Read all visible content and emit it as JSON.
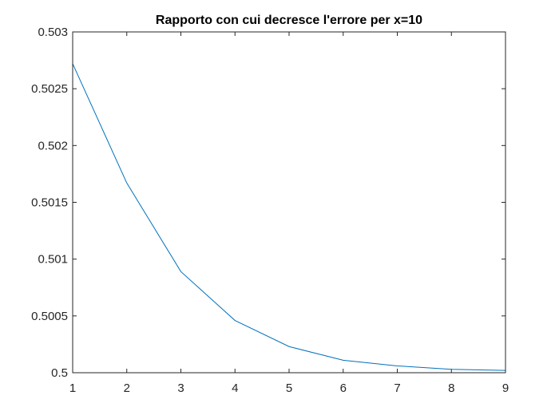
{
  "chart_data": {
    "type": "line",
    "title": "Rapporto con cui decresce l'errore per x=10",
    "xlabel": "",
    "ylabel": "",
    "x": [
      1,
      2,
      3,
      4,
      5,
      6,
      7,
      8,
      9
    ],
    "series": [
      {
        "values": [
          0.50272,
          0.50167,
          0.50089,
          0.50046,
          0.50023,
          0.50011,
          0.50006,
          0.50003,
          0.50002
        ],
        "color": "#0072BD"
      }
    ],
    "xlim": [
      1,
      9
    ],
    "ylim": [
      0.5,
      0.503
    ],
    "xticks": [
      1,
      2,
      3,
      4,
      5,
      6,
      7,
      8,
      9
    ],
    "xtick_labels": [
      "1",
      "2",
      "3",
      "4",
      "5",
      "6",
      "7",
      "8",
      "9"
    ],
    "yticks": [
      0.5,
      0.5005,
      0.501,
      0.5015,
      0.502,
      0.5025,
      0.503
    ],
    "ytick_labels": [
      "0.5",
      "0.5005",
      "0.501",
      "0.5015",
      "0.502",
      "0.5025",
      "0.503"
    ],
    "grid": false,
    "legend": false,
    "box": true
  }
}
